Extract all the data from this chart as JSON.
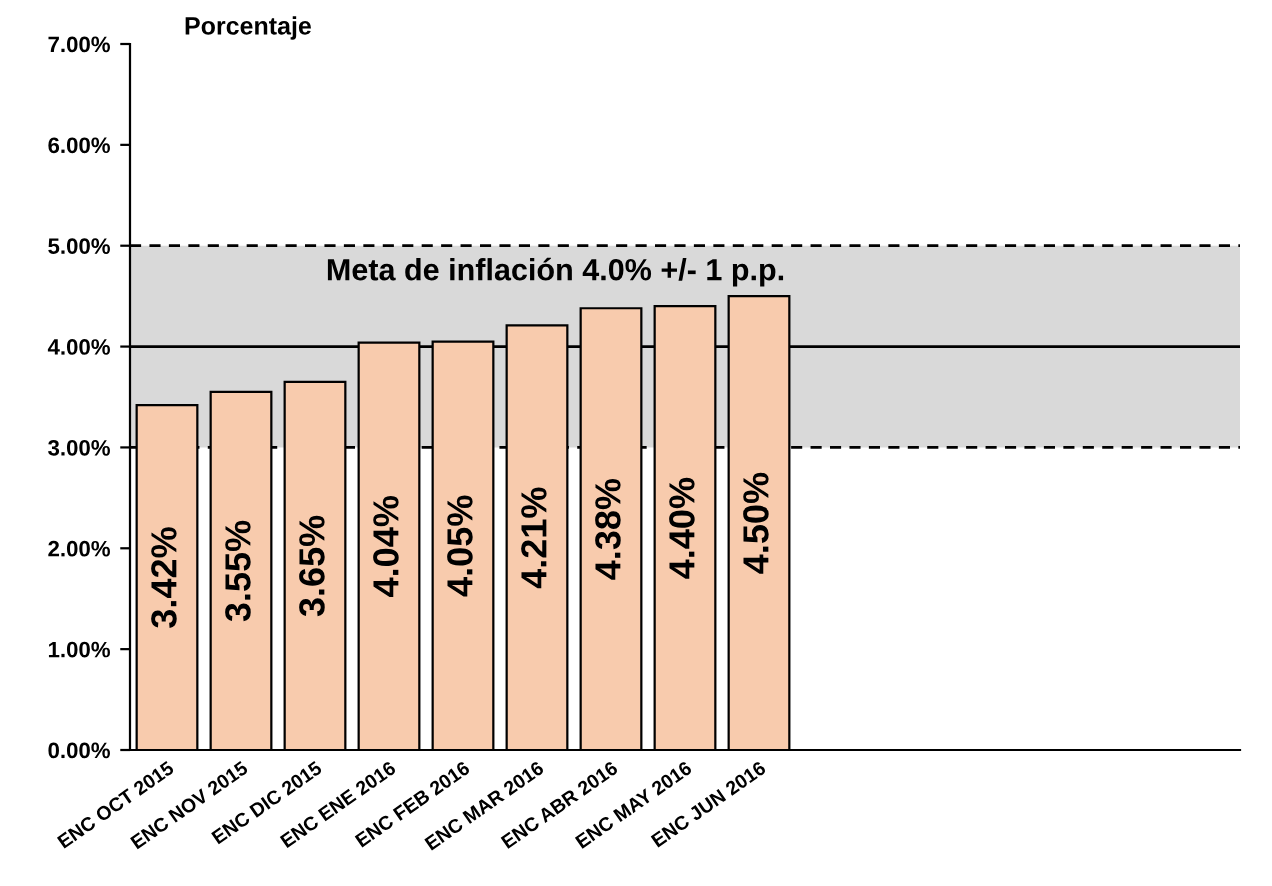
{
  "chart_data": {
    "type": "bar",
    "ylabel": "Porcentaje",
    "categories": [
      "ENC OCT 2015",
      "ENC NOV 2015",
      "ENC DIC 2015",
      "ENC ENE 2016",
      "ENC FEB 2016",
      "ENC MAR 2016",
      "ENC ABR 2016",
      "ENC MAY 2016",
      "ENC JUN 2016",
      null,
      null,
      null,
      null,
      null,
      null
    ],
    "values": [
      3.42,
      3.55,
      3.65,
      4.04,
      4.05,
      4.21,
      4.38,
      4.4,
      4.5,
      null,
      null,
      null,
      null,
      null,
      null
    ],
    "value_labels": [
      "3.42%",
      "3.55%",
      "3.65%",
      "4.04%",
      "4.05%",
      "4.21%",
      "4.38%",
      "4.40%",
      "4.50%",
      null,
      null,
      null,
      null,
      null,
      null
    ],
    "color": "#f8cbad",
    "ylim": [
      0,
      7
    ],
    "yticks": [
      {
        "value": 0,
        "label": "0.00%"
      },
      {
        "value": 1,
        "label": "1.00%"
      },
      {
        "value": 2,
        "label": "2.00%"
      },
      {
        "value": 3,
        "label": "3.00%"
      },
      {
        "value": 4,
        "label": "4.00%"
      },
      {
        "value": 5,
        "label": "5.00%"
      },
      {
        "value": 6,
        "label": "6.00%"
      },
      {
        "value": 7,
        "label": "7.00%"
      }
    ],
    "bands": [
      {
        "axis": "y",
        "from": 3,
        "to": 5,
        "label": "Meta de inflación 4.0% +/- 1 p.p.",
        "color": "#d9d9d9"
      }
    ],
    "ref_lines": [
      {
        "axis": "y",
        "value": 3,
        "color": "#000000",
        "line_style": "dashed"
      },
      {
        "axis": "y",
        "value": 5,
        "color": "#000000",
        "line_style": "dashed"
      },
      {
        "axis": "y",
        "value": 4,
        "color": "#000000",
        "line_style": "solid"
      }
    ],
    "grid": false,
    "legend": false
  }
}
